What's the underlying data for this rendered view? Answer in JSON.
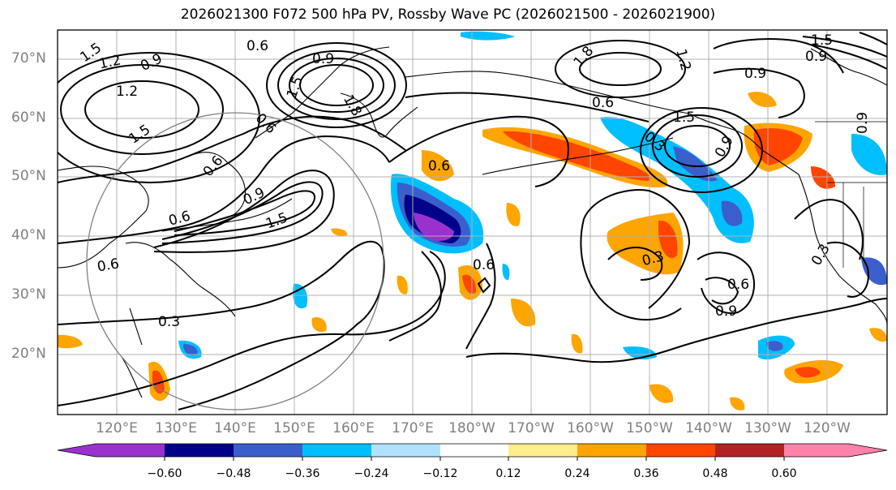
{
  "title": "2026021300 F072 500 hPa PV, Rossby Wave PC (2026021500 - 2026021900)",
  "lat_labels": [
    "70°N",
    "60°N",
    "50°N",
    "40°N",
    "30°N",
    "20°N"
  ],
  "lon_labels": [
    "120°E",
    "130°E",
    "140°E",
    "150°E",
    "160°E",
    "170°E",
    "180°W",
    "170°W",
    "160°W",
    "150°W",
    "140°W",
    "130°W",
    "120°W"
  ],
  "contour_labels": [
    "1.5",
    "1.2",
    "0.9",
    "1.2",
    "1.5",
    "0.6",
    "0.9",
    "1.5",
    "1.8",
    "0.6",
    "0.6",
    "1.5",
    "1.8",
    "1.2",
    "0.9",
    "0.6",
    "1.5",
    "0.3",
    "0.9",
    "0.9",
    "0.6",
    "0.9",
    "1.5",
    "0.6",
    "0.3",
    "0.6",
    "0.3",
    "0.6",
    "0.9",
    "0.3",
    "0.9",
    "0.6"
  ],
  "colorbar": {
    "ticks": [
      "−0.60",
      "−0.48",
      "−0.36",
      "−0.24",
      "−0.12",
      "0.12",
      "0.24",
      "0.36",
      "0.48",
      "0.60"
    ],
    "colors": [
      "#9932CC",
      "#00008B",
      "#3A5FCD",
      "#00BFFF",
      "#B0E2FF",
      "#FFFFFF",
      "#FFEC8B",
      "#FFA500",
      "#FF4500",
      "#B22222",
      "#FF82AB"
    ]
  }
}
